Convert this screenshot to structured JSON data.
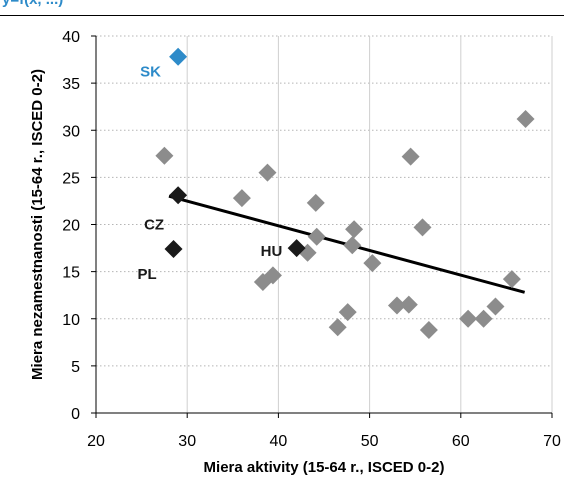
{
  "header": {
    "text": "y=f(x, ...)"
  },
  "chart_data": {
    "type": "scatter",
    "xlabel": "Miera aktivity (15-64 r., ISCED 0-2)",
    "ylabel": "Miera nezamestnanosti (15-64 r., ISCED 0-2)",
    "xlim": [
      20,
      70
    ],
    "ylim": [
      0,
      40
    ],
    "xticks": [
      "20",
      "30",
      "40",
      "50",
      "60",
      "70"
    ],
    "yticks": [
      "0",
      "5",
      "10",
      "15",
      "20",
      "25",
      "30",
      "35",
      "40"
    ],
    "grid": "dotted",
    "trendline": {
      "x": [
        28,
        67
      ],
      "y": [
        23,
        12.8
      ]
    },
    "colors": {
      "other": "#8C8C8C",
      "highlight": "#1a1a1a",
      "sk": "#2E8BC9"
    },
    "points": [
      {
        "x": 27.5,
        "y": 27.3
      },
      {
        "x": 36,
        "y": 22.8
      },
      {
        "x": 38.8,
        "y": 25.5
      },
      {
        "x": 38.3,
        "y": 13.9
      },
      {
        "x": 39.4,
        "y": 14.6
      },
      {
        "x": 43.2,
        "y": 17.0
      },
      {
        "x": 44.1,
        "y": 22.3
      },
      {
        "x": 44.2,
        "y": 18.7
      },
      {
        "x": 46.5,
        "y": 9.1
      },
      {
        "x": 47.6,
        "y": 10.7
      },
      {
        "x": 48.1,
        "y": 17.8
      },
      {
        "x": 48.3,
        "y": 19.5
      },
      {
        "x": 50.3,
        "y": 15.9
      },
      {
        "x": 53,
        "y": 11.4
      },
      {
        "x": 54.3,
        "y": 11.5
      },
      {
        "x": 54.5,
        "y": 27.2
      },
      {
        "x": 55.8,
        "y": 19.7
      },
      {
        "x": 56.5,
        "y": 8.8
      },
      {
        "x": 60.8,
        "y": 10.0
      },
      {
        "x": 62.5,
        "y": 10.0
      },
      {
        "x": 63.8,
        "y": 11.3
      },
      {
        "x": 65.6,
        "y": 14.2
      },
      {
        "x": 67.1,
        "y": 31.2
      }
    ],
    "labeled_points": [
      {
        "label": "SK",
        "x": 29,
        "y": 37.8,
        "color": "sk"
      },
      {
        "label": "CZ",
        "x": 29,
        "y": 23.1,
        "color": "highlight"
      },
      {
        "label": "PL",
        "x": 28.5,
        "y": 17.4,
        "color": "highlight"
      },
      {
        "label": "HU",
        "x": 42,
        "y": 17.5,
        "color": "highlight"
      }
    ]
  }
}
